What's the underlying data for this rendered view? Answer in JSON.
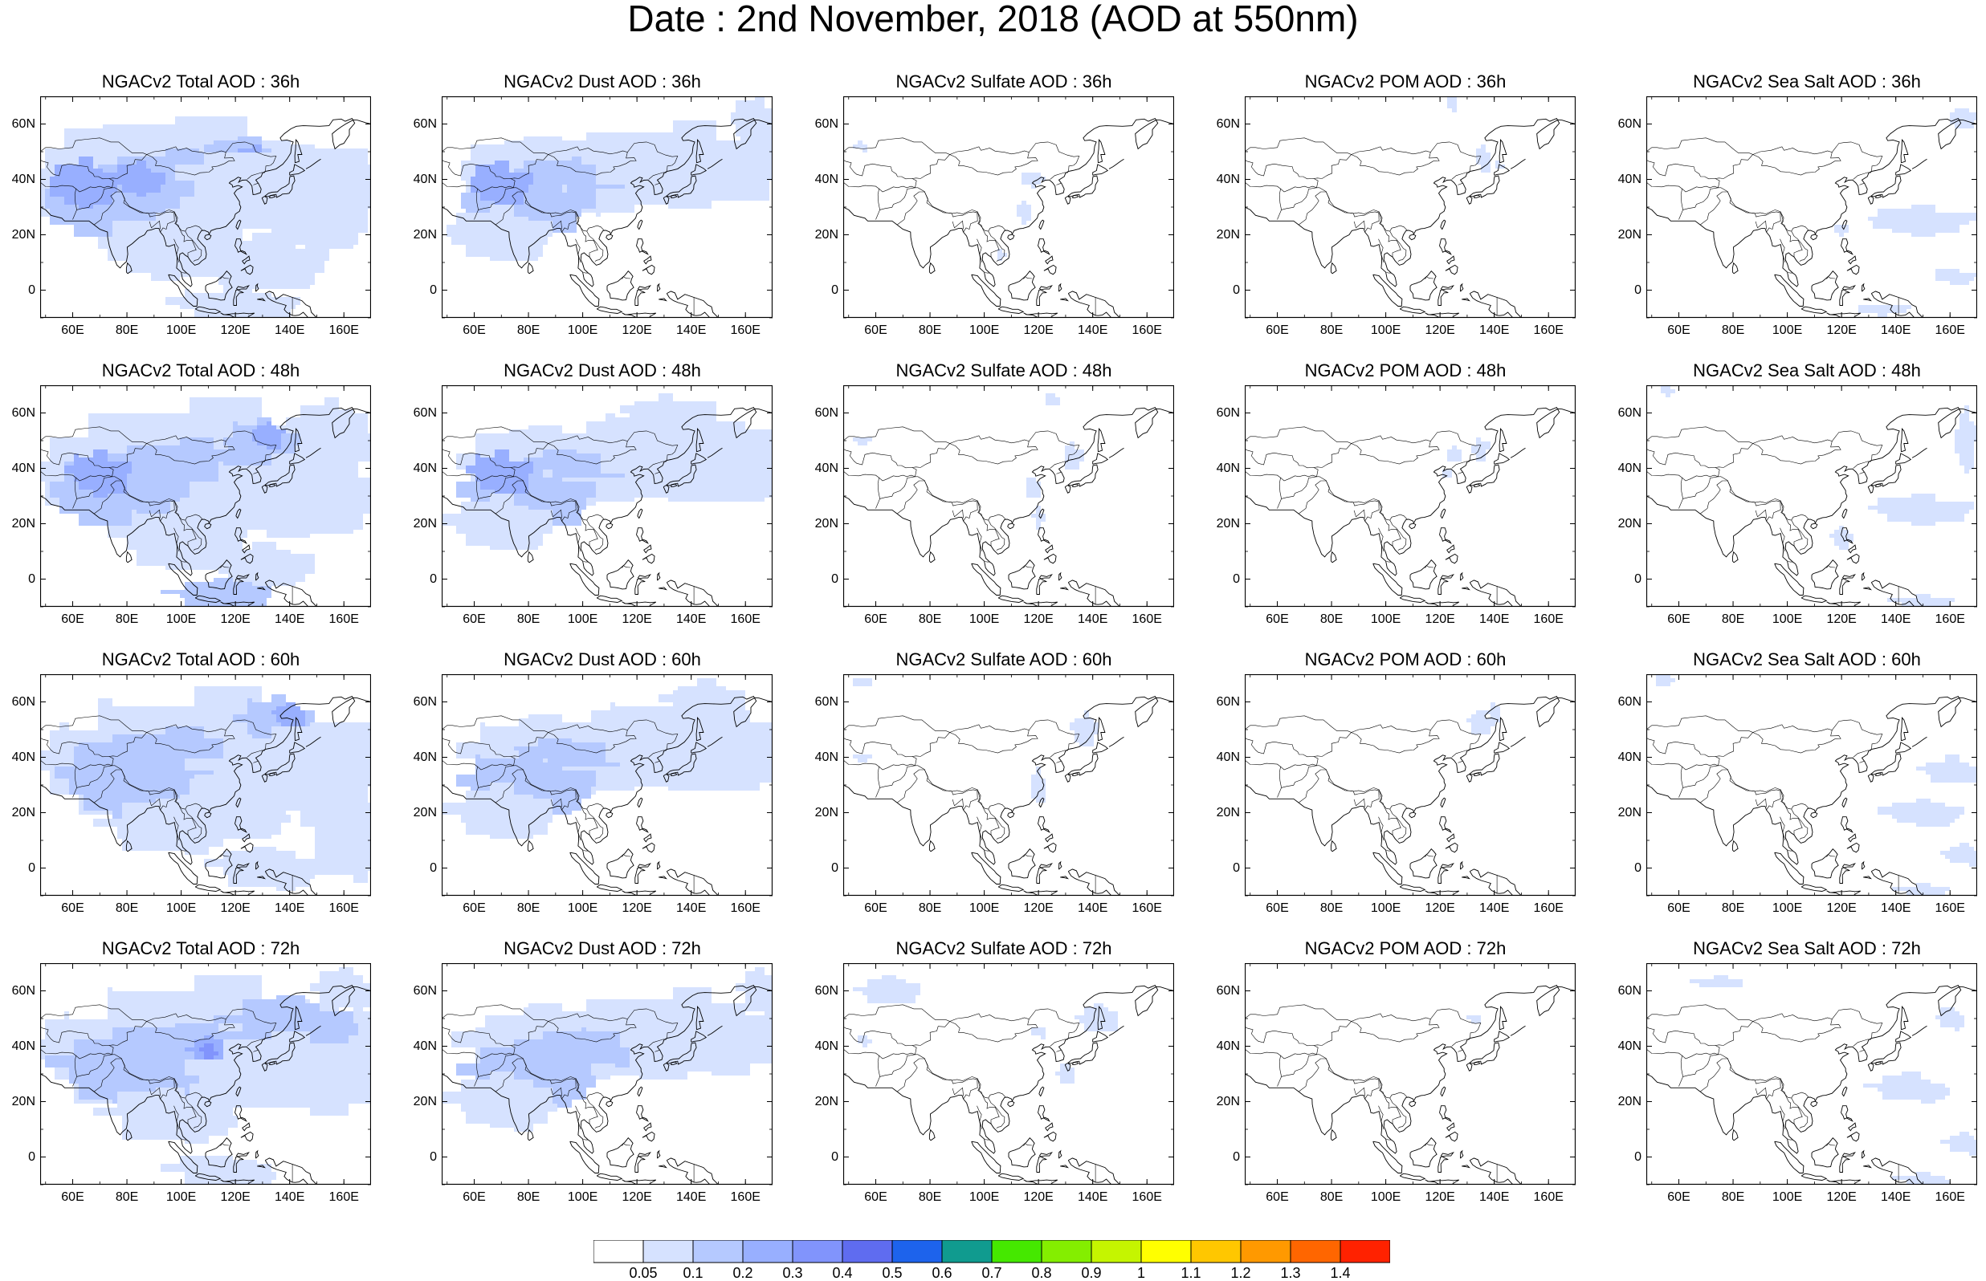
{
  "title": "Date : 2nd November, 2018 (AOD at 550nm)",
  "panels": [
    {
      "title": "NGACv2 Total AOD : 36h",
      "species": "total",
      "lead": 36
    },
    {
      "title": "NGACv2 Dust AOD : 36h",
      "species": "dust",
      "lead": 36
    },
    {
      "title": "NGACv2 Sulfate AOD : 36h",
      "species": "sulfate",
      "lead": 36
    },
    {
      "title": "NGACv2 POM AOD : 36h",
      "species": "pom",
      "lead": 36
    },
    {
      "title": "NGACv2 Sea Salt AOD : 36h",
      "species": "seasalt",
      "lead": 36
    },
    {
      "title": "NGACv2 Total AOD : 48h",
      "species": "total",
      "lead": 48
    },
    {
      "title": "NGACv2 Dust AOD : 48h",
      "species": "dust",
      "lead": 48
    },
    {
      "title": "NGACv2 Sulfate AOD : 48h",
      "species": "sulfate",
      "lead": 48
    },
    {
      "title": "NGACv2 POM AOD : 48h",
      "species": "pom",
      "lead": 48
    },
    {
      "title": "NGACv2 Sea Salt AOD : 48h",
      "species": "seasalt",
      "lead": 48
    },
    {
      "title": "NGACv2 Total AOD : 60h",
      "species": "total",
      "lead": 60
    },
    {
      "title": "NGACv2 Dust AOD : 60h",
      "species": "dust",
      "lead": 60
    },
    {
      "title": "NGACv2 Sulfate AOD : 60h",
      "species": "sulfate",
      "lead": 60
    },
    {
      "title": "NGACv2 POM AOD : 60h",
      "species": "pom",
      "lead": 60
    },
    {
      "title": "NGACv2 Sea Salt AOD : 60h",
      "species": "seasalt",
      "lead": 60
    },
    {
      "title": "NGACv2 Total AOD : 72h",
      "species": "total",
      "lead": 72
    },
    {
      "title": "NGACv2 Dust AOD : 72h",
      "species": "dust",
      "lead": 72
    },
    {
      "title": "NGACv2 Sulfate AOD : 72h",
      "species": "sulfate",
      "lead": 72
    },
    {
      "title": "NGACv2 POM AOD : 72h",
      "species": "pom",
      "lead": 72
    },
    {
      "title": "NGACv2 Sea Salt  AOD : 72h",
      "species": "seasalt",
      "lead": 72
    }
  ],
  "map": {
    "lon_range": [
      48,
      170
    ],
    "lat_range": [
      -10,
      70
    ],
    "lon_ticks": [
      "60E",
      "80E",
      "100E",
      "120E",
      "140E",
      "160E"
    ],
    "lon_tick_values": [
      60,
      80,
      100,
      120,
      140,
      160
    ],
    "lat_ticks": [
      "60N",
      "40N",
      "20N",
      "0"
    ],
    "lat_tick_values": [
      60,
      40,
      20,
      0
    ]
  },
  "colorbar": {
    "labels": [
      "0.05",
      "0.1",
      "0.2",
      "0.3",
      "0.4",
      "0.5",
      "0.6",
      "0.7",
      "0.8",
      "0.9",
      "1",
      "1.1",
      "1.2",
      "1.3",
      "1.4"
    ],
    "colors": [
      "#ffffff",
      "#d6e2ff",
      "#b5c9ff",
      "#98afff",
      "#8194fc",
      "#5f6cf0",
      "#1d63ec",
      "#109b8f",
      "#45e800",
      "#84ee00",
      "#c5f500",
      "#ffff00",
      "#ffc700",
      "#ff9900",
      "#ff6600",
      "#ff2200"
    ]
  },
  "field_colors": {
    "light": "#d6e2ff",
    "medium": "#b5c9ff",
    "strong": "#98afff",
    "peak": "#8194fc",
    "coast": "#000000"
  }
}
